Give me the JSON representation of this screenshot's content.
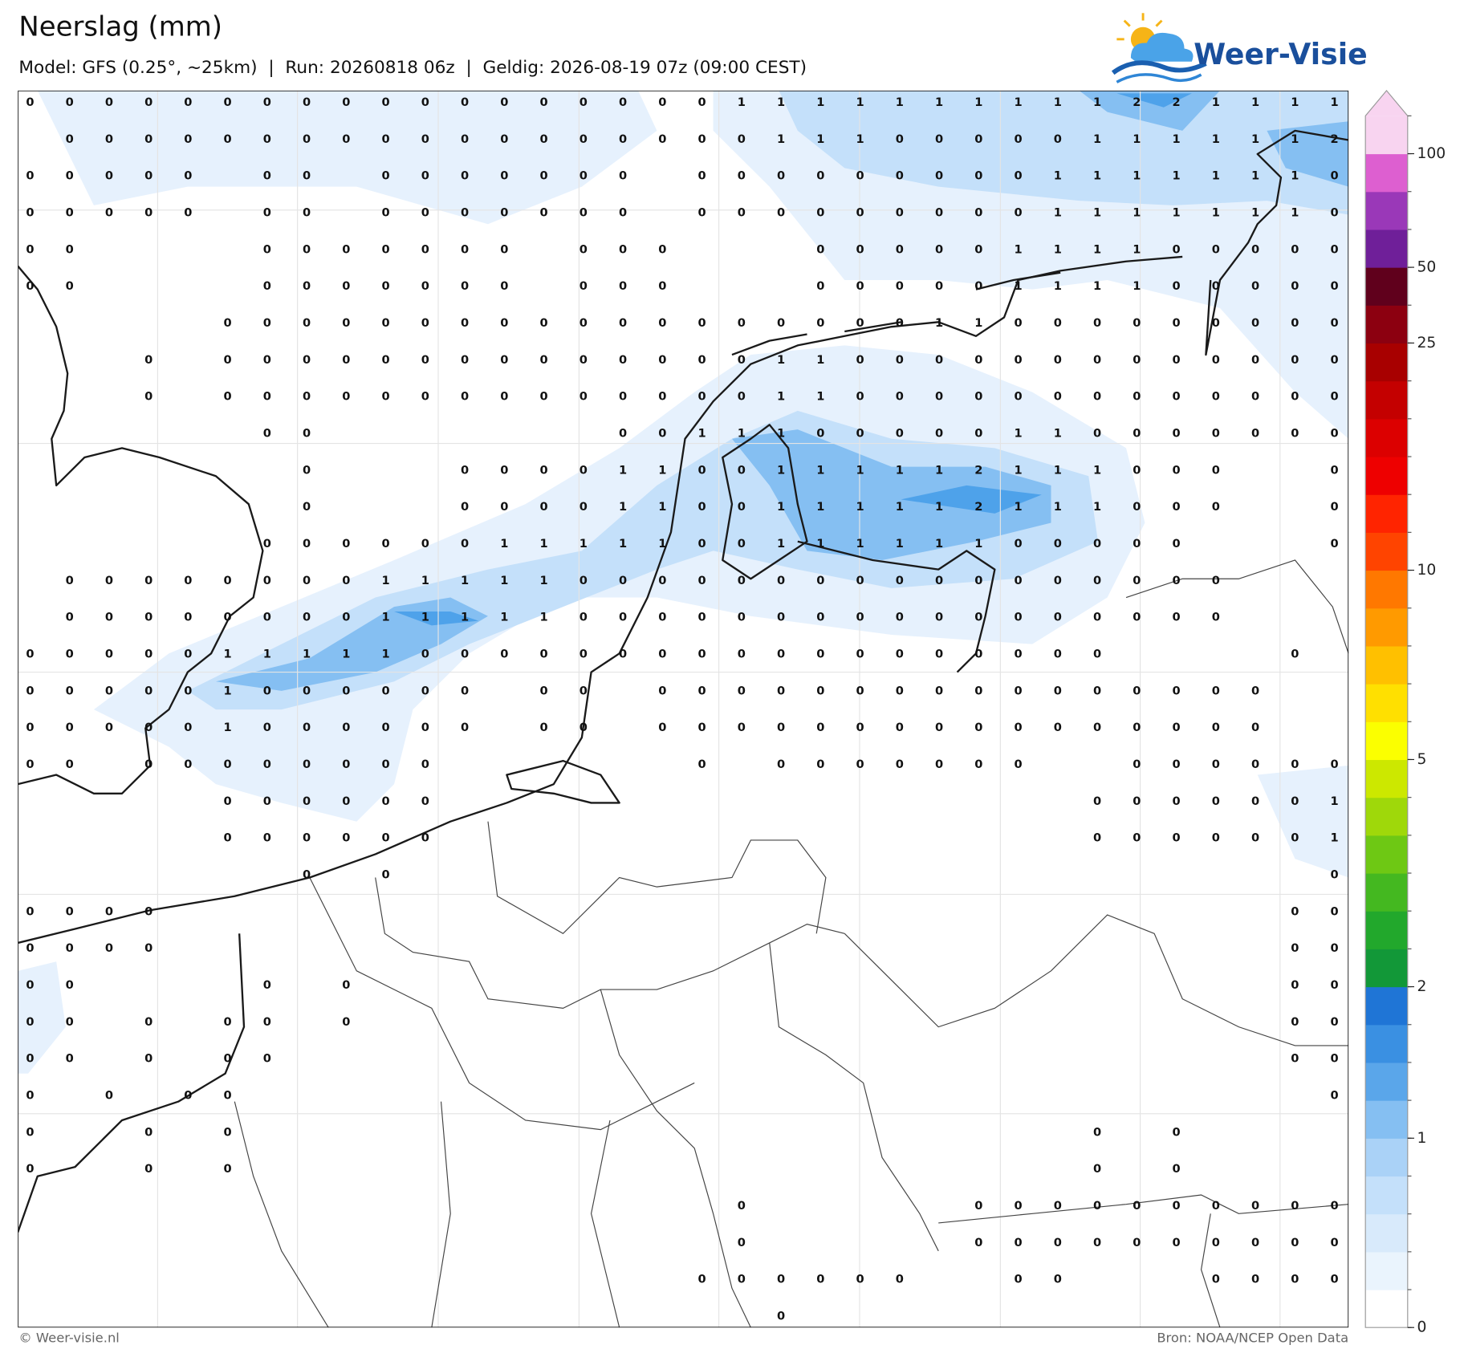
{
  "header": {
    "title": "Neerslag (mm)",
    "subtitle": "Model: GFS (0.25°, ~25km)  |  Run: 20260818 06z  |  Geldig: 2026-08-19 07z (09:00 CEST)",
    "logo": "Weer-Visie"
  },
  "map": {
    "grid_values": [
      [
        0,
        0,
        0,
        0,
        0,
        0,
        0,
        0,
        0,
        0,
        0,
        0,
        0,
        0,
        0,
        0,
        0,
        0,
        1,
        1,
        1,
        1,
        1,
        1,
        1,
        1,
        1,
        1,
        2,
        2,
        1,
        1,
        1,
        1
      ],
      [
        null,
        0,
        0,
        0,
        0,
        0,
        0,
        0,
        0,
        0,
        0,
        0,
        0,
        0,
        0,
        0,
        0,
        0,
        0,
        1,
        1,
        1,
        0,
        0,
        0,
        0,
        0,
        1,
        1,
        1,
        1,
        1,
        1,
        2
      ],
      [
        0,
        0,
        0,
        0,
        0,
        null,
        0,
        0,
        null,
        0,
        0,
        0,
        0,
        0,
        0,
        0,
        null,
        0,
        0,
        0,
        0,
        0,
        0,
        0,
        0,
        0,
        1,
        1,
        1,
        1,
        1,
        1,
        1,
        0
      ],
      [
        0,
        0,
        0,
        0,
        0,
        null,
        0,
        0,
        null,
        0,
        0,
        0,
        0,
        0,
        0,
        0,
        null,
        0,
        0,
        0,
        0,
        0,
        0,
        0,
        0,
        0,
        1,
        1,
        1,
        1,
        1,
        1,
        1,
        0
      ],
      [
        0,
        0,
        null,
        null,
        null,
        null,
        0,
        0,
        0,
        0,
        0,
        0,
        0,
        null,
        0,
        0,
        0,
        null,
        null,
        null,
        0,
        0,
        0,
        0,
        0,
        1,
        1,
        1,
        1,
        0,
        0,
        0,
        0,
        0
      ],
      [
        0,
        0,
        null,
        null,
        null,
        null,
        0,
        0,
        0,
        0,
        0,
        0,
        0,
        null,
        0,
        0,
        0,
        null,
        null,
        null,
        0,
        0,
        0,
        0,
        0,
        1,
        1,
        1,
        1,
        0,
        0,
        0,
        0,
        0
      ],
      [
        null,
        null,
        null,
        null,
        null,
        0,
        0,
        0,
        0,
        0,
        0,
        0,
        0,
        0,
        0,
        0,
        0,
        0,
        0,
        0,
        0,
        0,
        0,
        1,
        1,
        0,
        0,
        0,
        0,
        0,
        0,
        0,
        0,
        0
      ],
      [
        null,
        null,
        null,
        0,
        null,
        0,
        0,
        0,
        0,
        0,
        0,
        0,
        0,
        0,
        0,
        0,
        0,
        0,
        0,
        1,
        1,
        0,
        0,
        0,
        0,
        0,
        0,
        0,
        0,
        0,
        0,
        0,
        0,
        0
      ],
      [
        null,
        null,
        null,
        0,
        null,
        0,
        0,
        0,
        0,
        0,
        0,
        0,
        0,
        0,
        0,
        0,
        0,
        0,
        0,
        1,
        1,
        0,
        0,
        0,
        0,
        0,
        0,
        0,
        0,
        0,
        0,
        0,
        0,
        0
      ],
      [
        null,
        null,
        null,
        null,
        null,
        null,
        0,
        0,
        null,
        null,
        null,
        null,
        null,
        null,
        null,
        0,
        0,
        1,
        1,
        1,
        0,
        0,
        0,
        0,
        0,
        1,
        1,
        0,
        0,
        0,
        0,
        0,
        0,
        0
      ],
      [
        null,
        null,
        null,
        null,
        null,
        null,
        null,
        0,
        null,
        null,
        null,
        0,
        0,
        0,
        0,
        1,
        1,
        0,
        0,
        1,
        1,
        1,
        1,
        1,
        2,
        1,
        1,
        1,
        0,
        0,
        0,
        null,
        null,
        0
      ],
      [
        null,
        null,
        null,
        null,
        null,
        null,
        null,
        0,
        null,
        null,
        null,
        0,
        0,
        0,
        0,
        1,
        1,
        0,
        0,
        1,
        1,
        1,
        1,
        1,
        2,
        1,
        1,
        1,
        0,
        0,
        0,
        null,
        null,
        0
      ],
      [
        null,
        null,
        null,
        null,
        null,
        null,
        0,
        0,
        0,
        0,
        0,
        0,
        1,
        1,
        1,
        1,
        1,
        0,
        0,
        1,
        1,
        1,
        1,
        1,
        1,
        0,
        0,
        0,
        0,
        0,
        null,
        null,
        null,
        0
      ],
      [
        null,
        0,
        0,
        0,
        0,
        0,
        0,
        0,
        0,
        1,
        1,
        1,
        1,
        1,
        0,
        0,
        0,
        0,
        0,
        0,
        0,
        0,
        0,
        0,
        0,
        0,
        0,
        0,
        0,
        0,
        0,
        null,
        null,
        null
      ],
      [
        null,
        0,
        0,
        0,
        0,
        0,
        0,
        0,
        0,
        1,
        1,
        1,
        1,
        1,
        0,
        0,
        0,
        0,
        0,
        0,
        0,
        0,
        0,
        0,
        0,
        0,
        0,
        0,
        0,
        0,
        0,
        null,
        null,
        null
      ],
      [
        0,
        0,
        0,
        0,
        0,
        1,
        1,
        1,
        1,
        1,
        0,
        0,
        0,
        0,
        0,
        0,
        0,
        0,
        0,
        0,
        0,
        0,
        0,
        0,
        0,
        0,
        0,
        0,
        null,
        null,
        null,
        null,
        0,
        null
      ],
      [
        0,
        0,
        0,
        0,
        0,
        1,
        0,
        0,
        0,
        0,
        0,
        0,
        null,
        0,
        0,
        null,
        0,
        0,
        0,
        0,
        0,
        0,
        0,
        0,
        0,
        0,
        0,
        0,
        0,
        0,
        0,
        0,
        null,
        null
      ],
      [
        0,
        0,
        0,
        0,
        0,
        1,
        0,
        0,
        0,
        0,
        0,
        0,
        null,
        0,
        0,
        null,
        0,
        0,
        0,
        0,
        0,
        0,
        0,
        0,
        0,
        0,
        0,
        0,
        0,
        0,
        0,
        0,
        null,
        null
      ],
      [
        0,
        0,
        null,
        0,
        0,
        0,
        0,
        0,
        0,
        0,
        0,
        null,
        null,
        null,
        null,
        null,
        null,
        0,
        null,
        0,
        0,
        0,
        0,
        0,
        0,
        0,
        null,
        null,
        0,
        0,
        0,
        0,
        0,
        0
      ],
      [
        null,
        null,
        null,
        null,
        null,
        0,
        0,
        0,
        0,
        0,
        0,
        null,
        null,
        null,
        null,
        null,
        null,
        null,
        null,
        null,
        null,
        null,
        null,
        null,
        null,
        null,
        null,
        0,
        0,
        0,
        0,
        0,
        0,
        1
      ],
      [
        null,
        null,
        null,
        null,
        null,
        0,
        0,
        0,
        0,
        0,
        0,
        null,
        null,
        null,
        null,
        null,
        null,
        null,
        null,
        null,
        null,
        null,
        null,
        null,
        null,
        null,
        null,
        0,
        0,
        0,
        0,
        0,
        0,
        1
      ],
      [
        null,
        null,
        null,
        null,
        null,
        null,
        null,
        0,
        null,
        0,
        null,
        null,
        null,
        null,
        null,
        null,
        null,
        null,
        null,
        null,
        null,
        null,
        null,
        null,
        null,
        null,
        null,
        null,
        null,
        null,
        null,
        null,
        null,
        0
      ],
      [
        0,
        0,
        0,
        0,
        null,
        null,
        null,
        null,
        null,
        null,
        null,
        null,
        null,
        null,
        null,
        null,
        null,
        null,
        null,
        null,
        null,
        null,
        null,
        null,
        null,
        null,
        null,
        null,
        null,
        null,
        null,
        null,
        0,
        0
      ],
      [
        0,
        0,
        0,
        0,
        null,
        null,
        null,
        null,
        null,
        null,
        null,
        null,
        null,
        null,
        null,
        null,
        null,
        null,
        null,
        null,
        null,
        null,
        null,
        null,
        null,
        null,
        null,
        null,
        null,
        null,
        null,
        null,
        0,
        0
      ],
      [
        0,
        0,
        null,
        null,
        null,
        null,
        0,
        null,
        0,
        null,
        null,
        null,
        null,
        null,
        null,
        null,
        null,
        null,
        null,
        null,
        null,
        null,
        null,
        null,
        null,
        null,
        null,
        null,
        null,
        null,
        null,
        null,
        0,
        0
      ],
      [
        0,
        0,
        null,
        0,
        null,
        0,
        0,
        null,
        0,
        null,
        null,
        null,
        null,
        null,
        null,
        null,
        null,
        null,
        null,
        null,
        null,
        null,
        null,
        null,
        null,
        null,
        null,
        null,
        null,
        null,
        null,
        null,
        0,
        0
      ],
      [
        0,
        0,
        null,
        0,
        null,
        0,
        0,
        null,
        null,
        null,
        null,
        null,
        null,
        null,
        null,
        null,
        null,
        null,
        null,
        null,
        null,
        null,
        null,
        null,
        null,
        null,
        null,
        null,
        null,
        null,
        null,
        null,
        0,
        0
      ],
      [
        0,
        null,
        0,
        null,
        0,
        0,
        null,
        null,
        null,
        null,
        null,
        null,
        null,
        null,
        null,
        null,
        null,
        null,
        null,
        null,
        null,
        null,
        null,
        null,
        null,
        null,
        null,
        null,
        null,
        null,
        null,
        null,
        null,
        0
      ],
      [
        0,
        null,
        null,
        0,
        null,
        0,
        null,
        null,
        null,
        null,
        null,
        null,
        null,
        null,
        null,
        null,
        null,
        null,
        null,
        null,
        null,
        null,
        null,
        null,
        null,
        null,
        null,
        0,
        null,
        0,
        null,
        null,
        null,
        null
      ],
      [
        0,
        null,
        null,
        0,
        null,
        0,
        null,
        null,
        null,
        null,
        null,
        null,
        null,
        null,
        null,
        null,
        null,
        null,
        null,
        null,
        null,
        null,
        null,
        null,
        null,
        null,
        null,
        0,
        null,
        0,
        null,
        null,
        null,
        null
      ],
      [
        null,
        null,
        null,
        null,
        null,
        null,
        null,
        null,
        null,
        null,
        null,
        null,
        null,
        null,
        null,
        null,
        null,
        null,
        0,
        null,
        null,
        null,
        null,
        null,
        0,
        0,
        0,
        0,
        0,
        0,
        0,
        0,
        0,
        0
      ],
      [
        null,
        null,
        null,
        null,
        null,
        null,
        null,
        null,
        null,
        null,
        null,
        null,
        null,
        null,
        null,
        null,
        null,
        null,
        0,
        null,
        null,
        null,
        null,
        null,
        0,
        0,
        0,
        0,
        0,
        0,
        0,
        0,
        0,
        0
      ],
      [
        null,
        null,
        null,
        null,
        null,
        null,
        null,
        null,
        null,
        null,
        null,
        null,
        null,
        null,
        null,
        null,
        null,
        0,
        0,
        0,
        0,
        0,
        0,
        null,
        null,
        0,
        0,
        null,
        null,
        null,
        0,
        0,
        0,
        0
      ],
      [
        null,
        null,
        null,
        null,
        null,
        null,
        null,
        null,
        null,
        null,
        null,
        null,
        null,
        null,
        null,
        null,
        null,
        null,
        null,
        0,
        null,
        null,
        null,
        null,
        null,
        null,
        null,
        null,
        null,
        null,
        null,
        null,
        null,
        null
      ]
    ]
  },
  "colorbar": {
    "ticks": [
      0,
      1,
      2,
      5,
      10,
      25,
      50,
      100
    ],
    "colors": [
      "#ffffff",
      "#eaf4fd",
      "#d8eafb",
      "#c4e0fa",
      "#aad2f7",
      "#85bff2",
      "#5aa6ea",
      "#3a90e2",
      "#1f75d6",
      "#129838",
      "#22a82c",
      "#44b820",
      "#6ec814",
      "#9fd80a",
      "#cce800",
      "#fbff00",
      "#ffe000",
      "#ffc000",
      "#ff9a00",
      "#ff7800",
      "#ff4400",
      "#ff2400",
      "#ee0000",
      "#dc0000",
      "#c40000",
      "#a80000",
      "#8c0010",
      "#60001c",
      "#6f1f99",
      "#9a38b8",
      "#dd5fd0",
      "#f8d4f0"
    ]
  },
  "footer": {
    "copyright": "© Weer-visie.nl",
    "source": "Bron: NOAA/NCEP Open Data"
  }
}
